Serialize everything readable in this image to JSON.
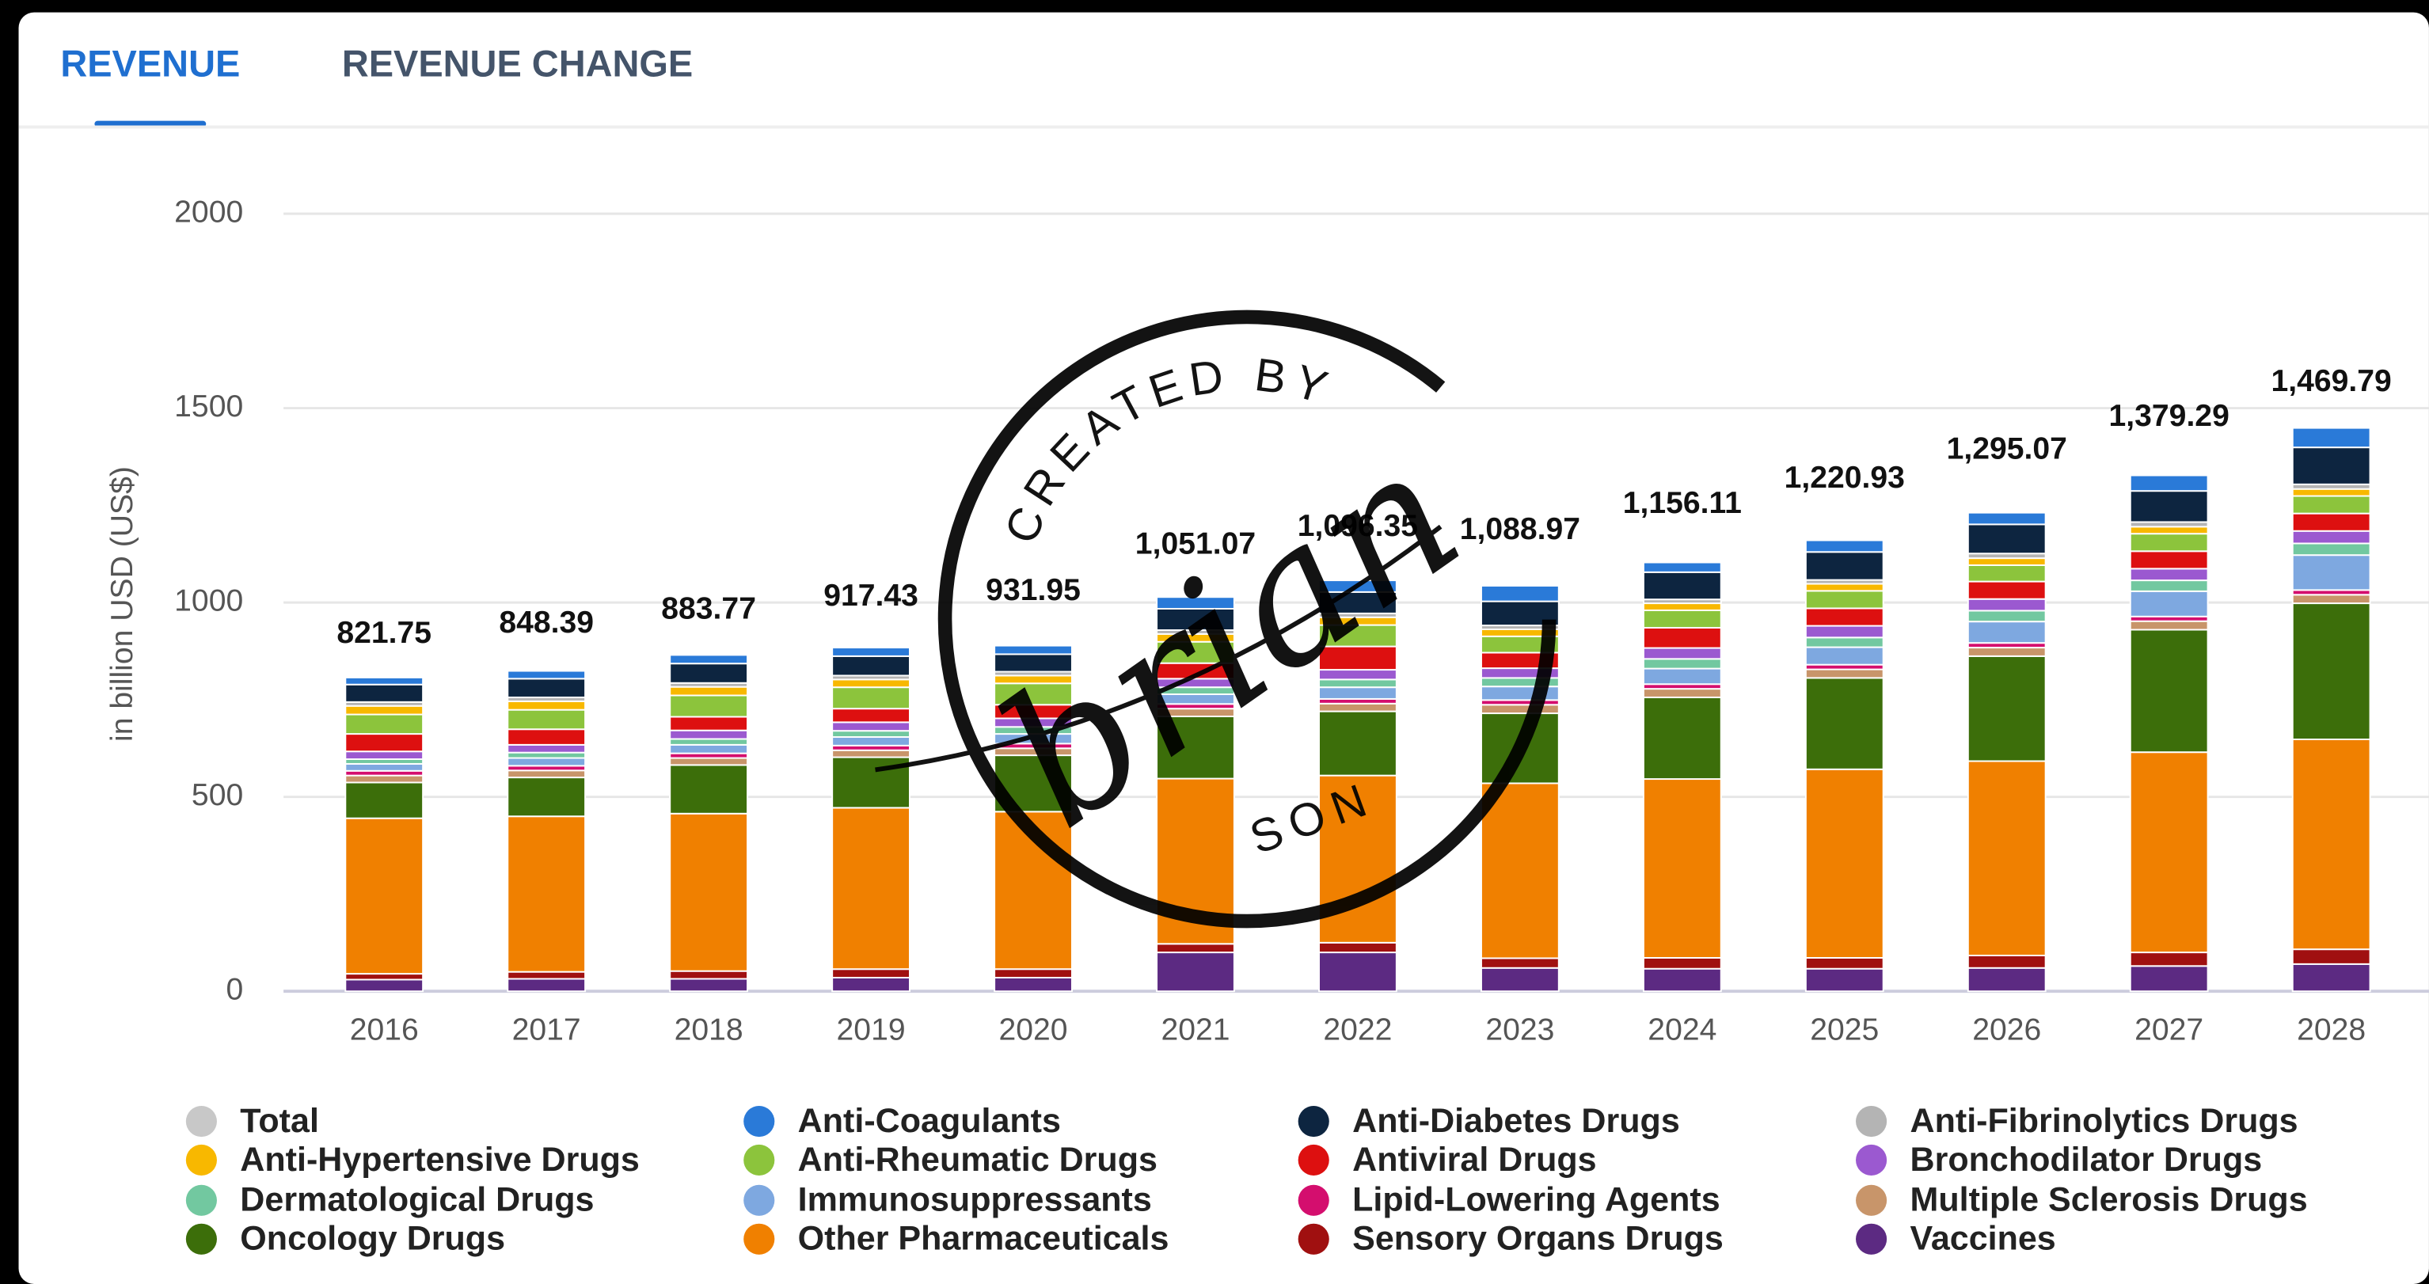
{
  "tabs": [
    "REVENUE",
    "REVENUE CHANGE"
  ],
  "watermark": [
    "CREATED BY",
    "brian",
    "SON"
  ],
  "chart_data": {
    "type": "stacked-bar",
    "y_label": "in billion USD (US$)",
    "categories": [
      "2016",
      "2017",
      "2018",
      "2019",
      "2020",
      "2021",
      "2022",
      "2023",
      "2024",
      "2025",
      "2026",
      "2027",
      "2028"
    ],
    "ylim": [
      0,
      2000
    ],
    "yticks": [
      0,
      500,
      1000,
      1500,
      2000
    ],
    "grid": true,
    "legend": "bottom",
    "series": [
      {
        "name": "Total",
        "color": "#c8c8c8",
        "hidden": true,
        "values": [
          821.75,
          848.39,
          883.77,
          917.43,
          931.95,
          1051.07,
          1096.35,
          1088.97,
          1156.11,
          1220.93,
          1295.07,
          1379.29,
          1469.79
        ],
        "value_labels": [
          "821.75",
          "848.39",
          "883.77",
          "917.43",
          "931.95",
          "1,051.07",
          "1,096.35",
          "1,088.97",
          "1,156.11",
          "1,220.93",
          "1,295.07",
          "1,379.29",
          "1,469.79"
        ]
      },
      {
        "name": "Anti-Coagulants",
        "color": "#2a7ad8",
        "values": [
          18,
          20,
          22,
          22,
          22,
          30,
          30,
          40,
          25,
          30,
          30,
          40,
          50
        ]
      },
      {
        "name": "Anti-Diabetes Drugs",
        "color": "#0d2540",
        "values": [
          45,
          48,
          50,
          50,
          45,
          55,
          55,
          62,
          70,
          72,
          75,
          80,
          95
        ]
      },
      {
        "name": "Anti-Fibrinolytics Drugs",
        "color": "#b4b4b4",
        "values": [
          10,
          10,
          10,
          10,
          10,
          10,
          10,
          10,
          10,
          10,
          12,
          12,
          12
        ]
      },
      {
        "name": "Anti-Hypertensive Drugs",
        "color": "#f8b800",
        "values": [
          22,
          22,
          22,
          20,
          20,
          20,
          20,
          18,
          18,
          18,
          18,
          18,
          18
        ]
      },
      {
        "name": "Anti-Rheumatic Drugs",
        "color": "#8cc43c",
        "values": [
          50,
          50,
          55,
          55,
          55,
          55,
          55,
          42,
          45,
          45,
          42,
          45,
          45
        ]
      },
      {
        "name": "Antiviral Drugs",
        "color": "#dd1010",
        "values": [
          45,
          40,
          35,
          35,
          35,
          40,
          60,
          40,
          52,
          45,
          45,
          45,
          45
        ]
      },
      {
        "name": "Bronchodilator Drugs",
        "color": "#9b59d0",
        "values": [
          20,
          20,
          22,
          22,
          22,
          22,
          25,
          25,
          28,
          30,
          30,
          30,
          32
        ]
      },
      {
        "name": "Dermatological Drugs",
        "color": "#72c8a0",
        "values": [
          12,
          14,
          15,
          16,
          18,
          18,
          20,
          22,
          25,
          25,
          28,
          28,
          30
        ]
      },
      {
        "name": "Immunosuppressants",
        "color": "#7ea8e0",
        "values": [
          18,
          20,
          22,
          22,
          25,
          25,
          30,
          35,
          40,
          45,
          55,
          65,
          90
        ]
      },
      {
        "name": "Lipid-Lowering Agents",
        "color": "#d40e6e",
        "values": [
          12,
          12,
          12,
          12,
          12,
          12,
          12,
          12,
          12,
          12,
          12,
          12,
          12
        ]
      },
      {
        "name": "Multiple Sclerosis Drugs",
        "color": "#c8956a",
        "values": [
          18,
          18,
          18,
          18,
          18,
          20,
          20,
          22,
          22,
          22,
          22,
          22,
          22
        ]
      },
      {
        "name": "Oncology Drugs",
        "color": "#3c6e0a",
        "values": [
          92,
          100,
          125,
          130,
          145,
          160,
          165,
          180,
          210,
          235,
          270,
          315,
          350
        ]
      },
      {
        "name": "Other Pharmaceuticals",
        "color": "#f08000",
        "values": [
          400,
          400,
          405,
          415,
          405,
          425,
          430,
          450,
          460,
          485,
          500,
          515,
          540
        ]
      },
      {
        "name": "Sensory Organs Drugs",
        "color": "#a01010",
        "values": [
          15,
          18,
          20,
          22,
          22,
          22,
          25,
          25,
          28,
          28,
          32,
          35,
          38
        ]
      },
      {
        "name": "Vaccines",
        "color": "#5c2a82",
        "values": [
          30,
          32,
          32,
          35,
          35,
          100,
          100,
          60,
          58,
          58,
          60,
          65,
          70
        ]
      }
    ]
  }
}
